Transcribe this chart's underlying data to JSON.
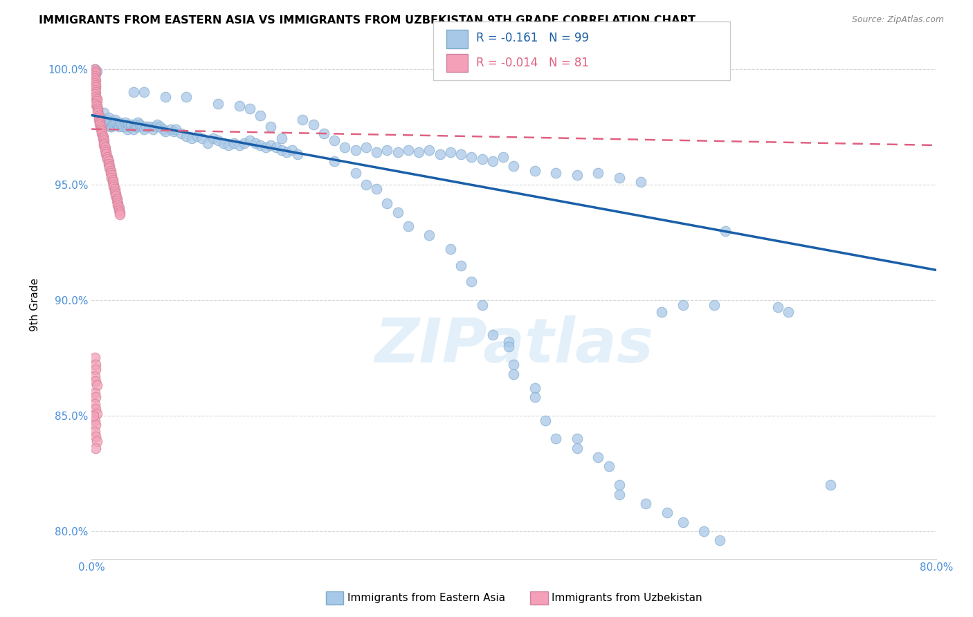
{
  "title": "IMMIGRANTS FROM EASTERN ASIA VS IMMIGRANTS FROM UZBEKISTAN 9TH GRADE CORRELATION CHART",
  "source": "Source: ZipAtlas.com",
  "ylabel": "9th Grade",
  "xlim": [
    0.0,
    0.8
  ],
  "ylim": [
    0.788,
    1.008
  ],
  "xticks": [
    0.0,
    0.2,
    0.4,
    0.6,
    0.8
  ],
  "xticklabels": [
    "0.0%",
    "",
    "",
    "",
    "80.0%"
  ],
  "yticks": [
    0.8,
    0.85,
    0.9,
    0.95,
    1.0
  ],
  "yticklabels": [
    "80.0%",
    "85.0%",
    "90.0%",
    "95.0%",
    "100.0%"
  ],
  "legend_R_blue": "-0.161",
  "legend_N_blue": "99",
  "legend_R_pink": "-0.014",
  "legend_N_pink": "81",
  "blue_color": "#a8c8e8",
  "pink_color": "#f4a0b8",
  "trendline_blue_color": "#1a5fa8",
  "trendline_pink_color": "#e06080",
  "watermark": "ZIPatlas",
  "blue_scatter": [
    [
      0.003,
      1.0
    ],
    [
      0.005,
      0.999
    ],
    [
      0.008,
      0.978
    ],
    [
      0.01,
      0.976
    ],
    [
      0.011,
      0.978
    ],
    [
      0.012,
      0.981
    ],
    [
      0.014,
      0.977
    ],
    [
      0.015,
      0.978
    ],
    [
      0.016,
      0.979
    ],
    [
      0.017,
      0.977
    ],
    [
      0.018,
      0.975
    ],
    [
      0.019,
      0.975
    ],
    [
      0.02,
      0.976
    ],
    [
      0.021,
      0.977
    ],
    [
      0.022,
      0.978
    ],
    [
      0.023,
      0.977
    ],
    [
      0.025,
      0.976
    ],
    [
      0.026,
      0.975
    ],
    [
      0.027,
      0.977
    ],
    [
      0.028,
      0.976
    ],
    [
      0.03,
      0.975
    ],
    [
      0.032,
      0.977
    ],
    [
      0.033,
      0.975
    ],
    [
      0.034,
      0.974
    ],
    [
      0.035,
      0.976
    ],
    [
      0.036,
      0.975
    ],
    [
      0.037,
      0.975
    ],
    [
      0.038,
      0.976
    ],
    [
      0.04,
      0.974
    ],
    [
      0.041,
      0.975
    ],
    [
      0.042,
      0.976
    ],
    [
      0.043,
      0.975
    ],
    [
      0.044,
      0.977
    ],
    [
      0.046,
      0.976
    ],
    [
      0.048,
      0.975
    ],
    [
      0.05,
      0.974
    ],
    [
      0.052,
      0.975
    ],
    [
      0.055,
      0.975
    ],
    [
      0.058,
      0.974
    ],
    [
      0.06,
      0.975
    ],
    [
      0.062,
      0.976
    ],
    [
      0.065,
      0.975
    ],
    [
      0.068,
      0.974
    ],
    [
      0.07,
      0.973
    ],
    [
      0.075,
      0.974
    ],
    [
      0.078,
      0.973
    ],
    [
      0.08,
      0.974
    ],
    [
      0.085,
      0.972
    ],
    [
      0.09,
      0.971
    ],
    [
      0.095,
      0.97
    ],
    [
      0.1,
      0.971
    ],
    [
      0.105,
      0.97
    ],
    [
      0.11,
      0.968
    ],
    [
      0.115,
      0.97
    ],
    [
      0.12,
      0.969
    ],
    [
      0.125,
      0.968
    ],
    [
      0.13,
      0.967
    ],
    [
      0.135,
      0.968
    ],
    [
      0.14,
      0.967
    ],
    [
      0.145,
      0.968
    ],
    [
      0.15,
      0.969
    ],
    [
      0.155,
      0.968
    ],
    [
      0.16,
      0.967
    ],
    [
      0.165,
      0.966
    ],
    [
      0.17,
      0.967
    ],
    [
      0.175,
      0.966
    ],
    [
      0.18,
      0.965
    ],
    [
      0.185,
      0.964
    ],
    [
      0.19,
      0.965
    ],
    [
      0.195,
      0.963
    ],
    [
      0.2,
      0.978
    ],
    [
      0.21,
      0.976
    ],
    [
      0.22,
      0.972
    ],
    [
      0.23,
      0.969
    ],
    [
      0.24,
      0.966
    ],
    [
      0.25,
      0.965
    ],
    [
      0.26,
      0.966
    ],
    [
      0.27,
      0.964
    ],
    [
      0.28,
      0.965
    ],
    [
      0.29,
      0.964
    ],
    [
      0.3,
      0.965
    ],
    [
      0.31,
      0.964
    ],
    [
      0.32,
      0.965
    ],
    [
      0.33,
      0.963
    ],
    [
      0.34,
      0.964
    ],
    [
      0.35,
      0.963
    ],
    [
      0.36,
      0.962
    ],
    [
      0.37,
      0.961
    ],
    [
      0.38,
      0.96
    ],
    [
      0.39,
      0.962
    ],
    [
      0.4,
      0.958
    ],
    [
      0.42,
      0.956
    ],
    [
      0.44,
      0.955
    ],
    [
      0.46,
      0.954
    ],
    [
      0.48,
      0.955
    ],
    [
      0.5,
      0.953
    ],
    [
      0.52,
      0.951
    ],
    [
      0.54,
      0.895
    ],
    [
      0.56,
      0.898
    ],
    [
      0.59,
      0.898
    ],
    [
      0.6,
      0.93
    ],
    [
      0.65,
      0.897
    ],
    [
      0.66,
      0.895
    ],
    [
      0.7,
      0.82
    ],
    [
      0.04,
      0.99
    ],
    [
      0.05,
      0.99
    ],
    [
      0.07,
      0.988
    ],
    [
      0.09,
      0.988
    ],
    [
      0.12,
      0.985
    ],
    [
      0.14,
      0.984
    ],
    [
      0.15,
      0.983
    ],
    [
      0.16,
      0.98
    ],
    [
      0.17,
      0.975
    ],
    [
      0.18,
      0.97
    ],
    [
      0.23,
      0.96
    ],
    [
      0.25,
      0.955
    ],
    [
      0.26,
      0.95
    ],
    [
      0.27,
      0.948
    ],
    [
      0.28,
      0.942
    ],
    [
      0.29,
      0.938
    ],
    [
      0.3,
      0.932
    ],
    [
      0.32,
      0.928
    ],
    [
      0.34,
      0.922
    ],
    [
      0.35,
      0.915
    ],
    [
      0.36,
      0.908
    ],
    [
      0.37,
      0.898
    ],
    [
      0.38,
      0.885
    ],
    [
      0.395,
      0.882
    ],
    [
      0.395,
      0.88
    ],
    [
      0.4,
      0.872
    ],
    [
      0.4,
      0.868
    ],
    [
      0.42,
      0.862
    ],
    [
      0.42,
      0.858
    ],
    [
      0.43,
      0.848
    ],
    [
      0.44,
      0.84
    ],
    [
      0.46,
      0.84
    ],
    [
      0.46,
      0.836
    ],
    [
      0.48,
      0.832
    ],
    [
      0.49,
      0.828
    ],
    [
      0.5,
      0.82
    ],
    [
      0.5,
      0.816
    ],
    [
      0.525,
      0.812
    ],
    [
      0.545,
      0.808
    ],
    [
      0.56,
      0.804
    ],
    [
      0.58,
      0.8
    ],
    [
      0.595,
      0.796
    ]
  ],
  "pink_scatter": [
    [
      0.003,
      1.0
    ],
    [
      0.004,
      0.999
    ],
    [
      0.004,
      0.998
    ],
    [
      0.003,
      0.997
    ],
    [
      0.003,
      0.996
    ],
    [
      0.004,
      0.995
    ],
    [
      0.003,
      0.994
    ],
    [
      0.004,
      0.993
    ],
    [
      0.004,
      0.992
    ],
    [
      0.003,
      0.991
    ],
    [
      0.004,
      0.99
    ],
    [
      0.003,
      0.989
    ],
    [
      0.004,
      0.988
    ],
    [
      0.005,
      0.987
    ],
    [
      0.005,
      0.986
    ],
    [
      0.004,
      0.985
    ],
    [
      0.005,
      0.984
    ],
    [
      0.006,
      0.983
    ],
    [
      0.006,
      0.982
    ],
    [
      0.006,
      0.981
    ],
    [
      0.007,
      0.98
    ],
    [
      0.007,
      0.979
    ],
    [
      0.007,
      0.978
    ],
    [
      0.008,
      0.977
    ],
    [
      0.008,
      0.976
    ],
    [
      0.009,
      0.975
    ],
    [
      0.009,
      0.974
    ],
    [
      0.01,
      0.973
    ],
    [
      0.01,
      0.972
    ],
    [
      0.011,
      0.971
    ],
    [
      0.011,
      0.97
    ],
    [
      0.012,
      0.969
    ],
    [
      0.012,
      0.968
    ],
    [
      0.012,
      0.967
    ],
    [
      0.013,
      0.966
    ],
    [
      0.013,
      0.965
    ],
    [
      0.014,
      0.964
    ],
    [
      0.014,
      0.963
    ],
    [
      0.015,
      0.962
    ],
    [
      0.015,
      0.961
    ],
    [
      0.016,
      0.96
    ],
    [
      0.016,
      0.959
    ],
    [
      0.017,
      0.958
    ],
    [
      0.017,
      0.957
    ],
    [
      0.018,
      0.956
    ],
    [
      0.018,
      0.955
    ],
    [
      0.019,
      0.954
    ],
    [
      0.019,
      0.953
    ],
    [
      0.02,
      0.952
    ],
    [
      0.02,
      0.951
    ],
    [
      0.021,
      0.95
    ],
    [
      0.021,
      0.949
    ],
    [
      0.022,
      0.948
    ],
    [
      0.022,
      0.947
    ],
    [
      0.023,
      0.946
    ],
    [
      0.023,
      0.945
    ],
    [
      0.024,
      0.944
    ],
    [
      0.024,
      0.943
    ],
    [
      0.025,
      0.942
    ],
    [
      0.025,
      0.941
    ],
    [
      0.026,
      0.94
    ],
    [
      0.026,
      0.939
    ],
    [
      0.027,
      0.938
    ],
    [
      0.027,
      0.937
    ],
    [
      0.003,
      0.875
    ],
    [
      0.004,
      0.872
    ],
    [
      0.004,
      0.87
    ],
    [
      0.003,
      0.867
    ],
    [
      0.004,
      0.865
    ],
    [
      0.005,
      0.863
    ],
    [
      0.003,
      0.86
    ],
    [
      0.004,
      0.858
    ],
    [
      0.003,
      0.855
    ],
    [
      0.004,
      0.853
    ],
    [
      0.005,
      0.851
    ],
    [
      0.003,
      0.848
    ],
    [
      0.004,
      0.846
    ],
    [
      0.003,
      0.843
    ],
    [
      0.004,
      0.841
    ],
    [
      0.005,
      0.839
    ],
    [
      0.004,
      0.836
    ],
    [
      0.002,
      0.85
    ]
  ],
  "blue_trendline_x": [
    0.0,
    0.8
  ],
  "blue_trendline_y": [
    0.98,
    0.913
  ],
  "pink_trendline_x": [
    0.0,
    0.8
  ],
  "pink_trendline_y": [
    0.974,
    0.967
  ]
}
